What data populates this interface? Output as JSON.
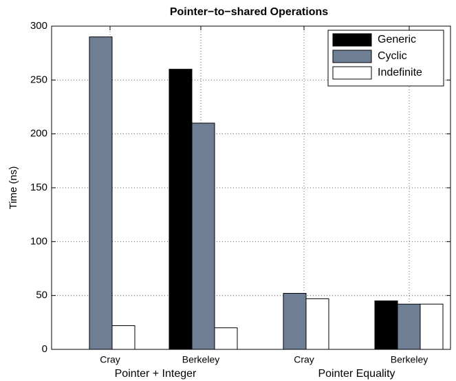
{
  "chart_data": {
    "type": "bar",
    "title": "Pointer−to−shared Operations",
    "ylabel": "Time (ns)",
    "categories": [
      "Cray",
      "Berkeley",
      "Cray",
      "Berkeley"
    ],
    "group_labels": [
      "Pointer + Integer",
      "Pointer Equality"
    ],
    "series": [
      {
        "name": "Generic",
        "color": "#000000",
        "values": [
          null,
          260,
          null,
          45
        ]
      },
      {
        "name": "Cyclic",
        "color": "#6e7e95",
        "values": [
          290,
          210,
          52,
          42
        ]
      },
      {
        "name": "Indefinite",
        "color": "#ffffff",
        "values": [
          22,
          20,
          47,
          42
        ]
      }
    ],
    "ylim": [
      0,
      300
    ],
    "yticks": [
      0,
      50,
      100,
      150,
      200,
      250,
      300
    ],
    "grid": true,
    "legend": "upper right"
  }
}
